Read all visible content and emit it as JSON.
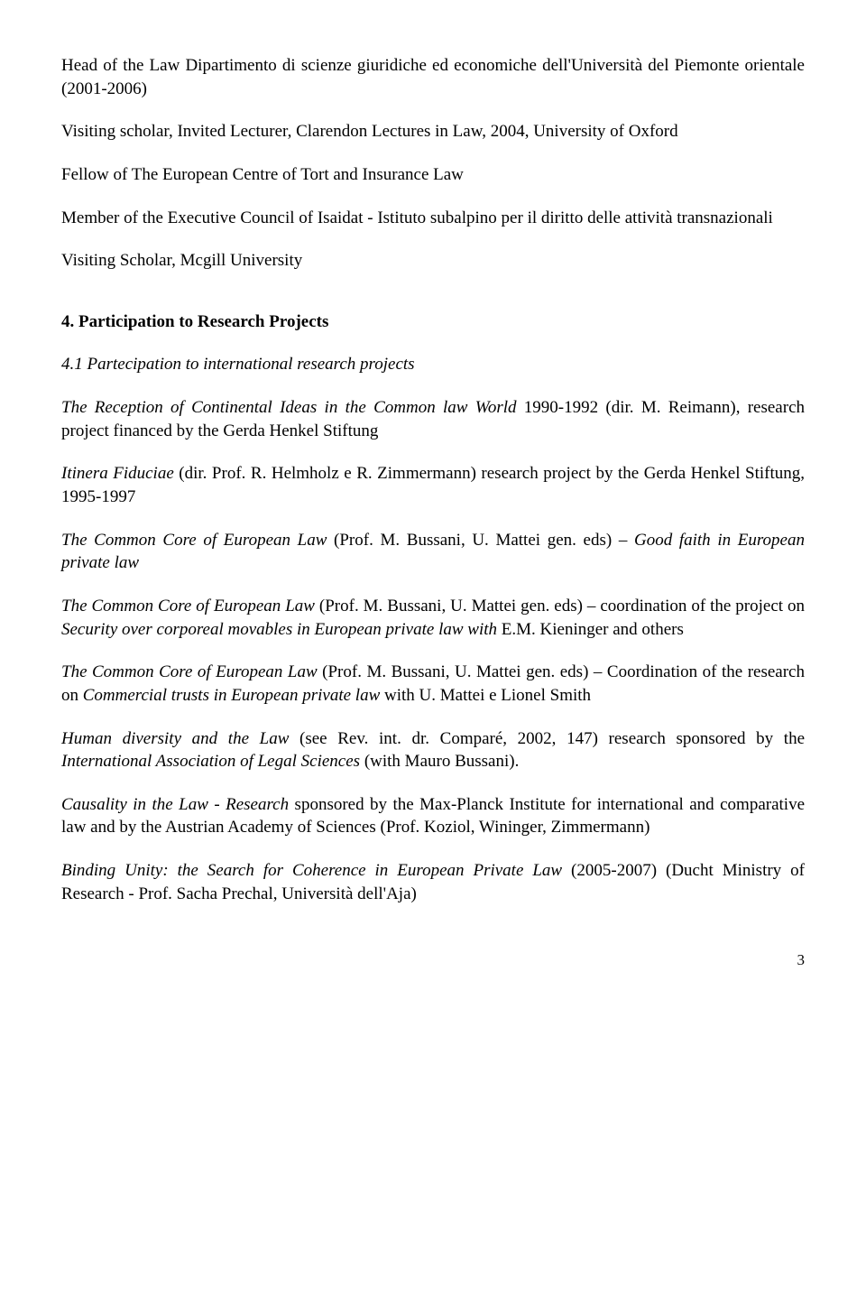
{
  "typography": {
    "font_family": "Times New Roman",
    "body_fontsize_pt": 14,
    "heading_weight": "bold",
    "text_color": "#000000",
    "background_color": "#ffffff"
  },
  "positions": {
    "p1": "Head of the Law Dipartimento di scienze giuridiche ed economiche dell'Università del Piemonte orientale (2001-2006)",
    "p2": "Visiting scholar, Invited Lecturer, Clarendon Lectures in Law, 2004, University of Oxford",
    "p3": "Fellow of The European Centre of Tort and Insurance Law",
    "p4": "Member of the Executive Council of Isaidat - Istituto subalpino per il diritto delle attività transnazionali",
    "p5": "Visiting Scholar, Mcgill University"
  },
  "section4": {
    "heading": "4. Participation to Research Projects",
    "subheading": "4.1 Partecipation to international research projects",
    "proj1": {
      "title_italic": "The Reception of Continental Ideas in the Common law World",
      "after_title": " 1990-1992 (dir. M. Reimann), research project financed by the Gerda Henkel Stiftung"
    },
    "proj2": {
      "title_italic": "Itinera Fiduciae",
      "after_title": " (dir. Prof. R. Helmholz e R. Zimmermann) research project by the Gerda Henkel Stiftung, 1995-1997"
    },
    "proj3": {
      "lead_italic": "The Common Core of European Law",
      "mid": " (Prof. M. Bussani, U. Mattei gen. eds) – ",
      "tail_italic": "Good faith in European private law"
    },
    "proj4": {
      "lead_italic": "The Common Core of European Law",
      "mid": " (Prof. M. Bussani, U. Mattei gen. eds) – coordination of the project on ",
      "tail_italic": "Security over corporeal movables in European private law with",
      "tail_plain": " E.M. Kieninger and others"
    },
    "proj5": {
      "lead_italic": "The Common Core of European Law",
      "mid": " (Prof. M. Bussani, U. Mattei gen. eds) – Coordination of the research on ",
      "tail_italic": "Commercial trusts in European private law",
      "tail_plain": " with U. Mattei e Lionel Smith"
    },
    "proj6": {
      "lead_italic": "Human diversity and the Law",
      "mid": " (see Rev. int. dr. Comparé, 2002, 147) research sponsored by the ",
      "tail_italic": "International Association of Legal Sciences",
      "tail_plain": " (with Mauro Bussani)."
    },
    "proj7": {
      "lead_italic": "Causality in the Law - Research",
      "after": " sponsored by the Max-Planck Institute for international and comparative law and by the Austrian Academy of Sciences (Prof. Koziol, Wininger, Zimmermann)"
    },
    "proj8": {
      "lead_italic": "Binding Unity: the Search for Coherence in European Private Law",
      "after": " (2005-2007) (Ducht Ministry of Research - Prof. Sacha Prechal, Università dell'Aja)"
    }
  },
  "page_number": "3"
}
